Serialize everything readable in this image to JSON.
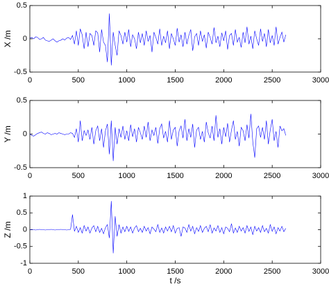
{
  "chart_data": [
    {
      "type": "line",
      "y_label": "X /m",
      "xlim": [
        0,
        3000
      ],
      "xticks": [
        0,
        500,
        1000,
        1500,
        2000,
        2500,
        3000
      ],
      "ylim": [
        -0.5,
        0.5
      ],
      "yticks": [
        -0.5,
        0,
        0.5
      ],
      "x": [
        0,
        20,
        40,
        60,
        80,
        100,
        120,
        140,
        160,
        180,
        200,
        220,
        240,
        260,
        280,
        300,
        320,
        340,
        360,
        380,
        400,
        420,
        440,
        460,
        480,
        500,
        520,
        540,
        560,
        580,
        600,
        620,
        640,
        660,
        680,
        700,
        720,
        740,
        760,
        780,
        800,
        820,
        840,
        860,
        880,
        900,
        920,
        940,
        960,
        980,
        1000,
        1020,
        1040,
        1060,
        1080,
        1100,
        1120,
        1140,
        1160,
        1180,
        1200,
        1220,
        1240,
        1260,
        1280,
        1300,
        1320,
        1340,
        1360,
        1380,
        1400,
        1420,
        1440,
        1460,
        1480,
        1500,
        1520,
        1540,
        1560,
        1580,
        1600,
        1620,
        1640,
        1660,
        1680,
        1700,
        1720,
        1740,
        1760,
        1780,
        1800,
        1820,
        1840,
        1860,
        1880,
        1900,
        1920,
        1940,
        1960,
        1980,
        2000,
        2020,
        2040,
        2060,
        2080,
        2100,
        2120,
        2140,
        2160,
        2180,
        2200,
        2220,
        2240,
        2260,
        2280,
        2300,
        2320,
        2340,
        2360,
        2380,
        2400,
        2420,
        2440,
        2460,
        2480,
        2500,
        2520,
        2540,
        2560,
        2580,
        2600,
        2620,
        2640
      ],
      "series": [
        {
          "color": "#0000ff",
          "values": [
            0.01,
            0.02,
            0.0,
            0.03,
            0.02,
            -0.01,
            0.0,
            0.02,
            -0.02,
            -0.03,
            -0.04,
            -0.02,
            0.0,
            -0.03,
            -0.05,
            -0.03,
            -0.02,
            0.0,
            -0.02,
            0.01,
            0.02,
            -0.01,
            0.05,
            -0.08,
            0.12,
            -0.1,
            0.15,
            0.06,
            -0.15,
            0.1,
            -0.12,
            0.08,
            0.05,
            -0.1,
            0.12,
            0.09,
            -0.2,
            0.14,
            -0.05,
            -0.1,
            -0.35,
            0.38,
            -0.4,
            0.1,
            -0.1,
            -0.25,
            0.12,
            0.05,
            -0.08,
            0.1,
            -0.05,
            0.14,
            -0.12,
            0.06,
            0.0,
            -0.15,
            0.1,
            -0.06,
            0.08,
            -0.1,
            0.12,
            -0.04,
            0.05,
            -0.2,
            0.1,
            0.02,
            -0.08,
            0.15,
            -0.1,
            0.04,
            -0.06,
            0.12,
            -0.15,
            0.08,
            0.0,
            -0.1,
            0.16,
            -0.05,
            0.06,
            -0.12,
            0.1,
            -0.08,
            0.05,
            0.14,
            -0.18,
            0.03,
            0.08,
            -0.1,
            0.12,
            -0.04,
            0.06,
            -0.14,
            0.1,
            0.02,
            -0.08,
            0.17,
            -0.06,
            0.04,
            -0.12,
            0.09,
            -0.03,
            0.12,
            -0.16,
            0.05,
            0.08,
            -0.1,
            0.14,
            -0.05,
            0.02,
            -0.13,
            0.1,
            -0.06,
            0.18,
            -0.08,
            0.04,
            -0.15,
            0.12,
            0.0,
            -0.1,
            0.15,
            -0.04,
            0.08,
            -0.12,
            0.14,
            -0.06,
            0.05,
            -0.1,
            0.18,
            -0.08,
            0.02,
            0.1,
            -0.05,
            0.06
          ]
        }
      ]
    },
    {
      "type": "line",
      "y_label": "Y /m",
      "xlim": [
        0,
        3000
      ],
      "xticks": [
        0,
        500,
        1000,
        1500,
        2000,
        2500,
        3000
      ],
      "ylim": [
        -0.5,
        0.5
      ],
      "yticks": [
        -0.5,
        0,
        0.5
      ],
      "x": [
        0,
        20,
        40,
        60,
        80,
        100,
        120,
        140,
        160,
        180,
        200,
        220,
        240,
        260,
        280,
        300,
        320,
        340,
        360,
        380,
        400,
        420,
        440,
        460,
        480,
        500,
        520,
        540,
        560,
        580,
        600,
        620,
        640,
        660,
        680,
        700,
        720,
        740,
        760,
        780,
        800,
        820,
        840,
        860,
        880,
        900,
        920,
        940,
        960,
        980,
        1000,
        1020,
        1040,
        1060,
        1080,
        1100,
        1120,
        1140,
        1160,
        1180,
        1200,
        1220,
        1240,
        1260,
        1280,
        1300,
        1320,
        1340,
        1360,
        1380,
        1400,
        1420,
        1440,
        1460,
        1480,
        1500,
        1520,
        1540,
        1560,
        1580,
        1600,
        1620,
        1640,
        1660,
        1680,
        1700,
        1720,
        1740,
        1760,
        1780,
        1800,
        1820,
        1840,
        1860,
        1880,
        1900,
        1920,
        1940,
        1960,
        1980,
        2000,
        2020,
        2040,
        2060,
        2080,
        2100,
        2120,
        2140,
        2160,
        2180,
        2200,
        2220,
        2240,
        2260,
        2280,
        2300,
        2320,
        2340,
        2360,
        2380,
        2400,
        2420,
        2440,
        2460,
        2480,
        2500,
        2520,
        2540,
        2560,
        2580,
        2600,
        2620,
        2640
      ],
      "series": [
        {
          "color": "#0000ff",
          "values": [
            0.0,
            -0.02,
            -0.03,
            -0.01,
            0.01,
            0.02,
            0.03,
            0.01,
            0.0,
            0.02,
            0.01,
            -0.01,
            0.0,
            0.01,
            0.0,
            0.02,
            0.01,
            0.0,
            -0.01,
            0.0,
            0.0,
            0.02,
            0.01,
            -0.05,
            0.08,
            -0.12,
            0.2,
            -0.1,
            0.05,
            -0.02,
            0.06,
            -0.08,
            0.1,
            -0.15,
            0.05,
            0.12,
            -0.1,
            0.08,
            -0.2,
            0.05,
            0.15,
            -0.3,
            0.2,
            -0.4,
            0.1,
            -0.15,
            0.08,
            -0.05,
            0.12,
            -0.08,
            0.05,
            -0.1,
            0.14,
            -0.04,
            0.08,
            -0.12,
            0.1,
            0.02,
            -0.08,
            0.12,
            -0.05,
            0.18,
            -0.1,
            0.06,
            -0.02,
            0.1,
            -0.14,
            0.08,
            0.15,
            -0.06,
            0.04,
            -0.12,
            0.2,
            -0.08,
            0.06,
            0.1,
            -0.18,
            0.05,
            0.12,
            -0.06,
            0.22,
            -0.1,
            0.08,
            -0.05,
            0.15,
            -0.2,
            0.06,
            0.1,
            -0.08,
            0.04,
            -0.12,
            0.18,
            0.02,
            -0.06,
            0.12,
            -0.1,
            0.28,
            -0.05,
            0.08,
            -0.15,
            0.1,
            -0.04,
            0.16,
            -0.12,
            0.06,
            0.2,
            -0.08,
            0.04,
            -0.18,
            0.1,
            0.05,
            -0.1,
            0.14,
            -0.06,
            0.3,
            -0.12,
            -0.35,
            0.08,
            0.12,
            -0.05,
            0.1,
            -0.08,
            0.2,
            -0.15,
            0.06,
            0.22,
            -0.1,
            0.04,
            -0.2,
            0.12,
            0.05,
            0.08,
            -0.02
          ]
        }
      ]
    },
    {
      "type": "line",
      "y_label": "Z /m",
      "x_label": "t /s",
      "xlim": [
        0,
        3000
      ],
      "xticks": [
        0,
        500,
        1000,
        1500,
        2000,
        2500,
        3000
      ],
      "ylim": [
        -1,
        1
      ],
      "yticks": [
        -1,
        -0.5,
        0,
        0.5,
        1
      ],
      "x": [
        0,
        20,
        40,
        60,
        80,
        100,
        120,
        140,
        160,
        180,
        200,
        220,
        240,
        260,
        280,
        300,
        320,
        340,
        360,
        380,
        400,
        420,
        440,
        460,
        480,
        500,
        520,
        540,
        560,
        580,
        600,
        620,
        640,
        660,
        680,
        700,
        720,
        740,
        760,
        780,
        800,
        820,
        840,
        860,
        880,
        900,
        920,
        940,
        960,
        980,
        1000,
        1020,
        1040,
        1060,
        1080,
        1100,
        1120,
        1140,
        1160,
        1180,
        1200,
        1220,
        1240,
        1260,
        1280,
        1300,
        1320,
        1340,
        1360,
        1380,
        1400,
        1420,
        1440,
        1460,
        1480,
        1500,
        1520,
        1540,
        1560,
        1580,
        1600,
        1620,
        1640,
        1660,
        1680,
        1700,
        1720,
        1740,
        1760,
        1780,
        1800,
        1820,
        1840,
        1860,
        1880,
        1900,
        1920,
        1940,
        1960,
        1980,
        2000,
        2020,
        2040,
        2060,
        2080,
        2100,
        2120,
        2140,
        2160,
        2180,
        2200,
        2220,
        2240,
        2260,
        2280,
        2300,
        2320,
        2340,
        2360,
        2380,
        2400,
        2420,
        2440,
        2460,
        2480,
        2500,
        2520,
        2540,
        2560,
        2580,
        2600,
        2620,
        2640
      ],
      "series": [
        {
          "color": "#0000ff",
          "values": [
            0.0,
            0.01,
            0.0,
            -0.01,
            0.0,
            0.01,
            0.0,
            0.0,
            -0.01,
            0.0,
            0.0,
            0.01,
            0.0,
            -0.01,
            0.0,
            0.0,
            0.01,
            0.0,
            0.0,
            -0.01,
            0.0,
            0.01,
            0.45,
            -0.05,
            0.1,
            -0.08,
            0.06,
            -0.1,
            0.12,
            -0.04,
            0.08,
            -0.1,
            0.05,
            0.12,
            -0.06,
            0.1,
            -0.08,
            0.04,
            -0.12,
            0.06,
            0.15,
            -0.25,
            0.85,
            -0.7,
            0.4,
            -0.2,
            0.15,
            -0.1,
            0.08,
            -0.06,
            0.1,
            -0.05,
            0.08,
            -0.1,
            0.05,
            0.12,
            -0.06,
            0.04,
            -0.08,
            0.1,
            -0.04,
            0.06,
            -0.12,
            0.08,
            0.02,
            -0.06,
            0.15,
            -0.08,
            0.05,
            -0.1,
            0.08,
            -0.04,
            0.1,
            -0.06,
            0.12,
            -0.1,
            0.04,
            0.06,
            -0.2,
            0.08,
            0.05,
            -0.08,
            0.15,
            -0.04,
            0.1,
            -0.12,
            0.06,
            -0.05,
            0.12,
            -0.08,
            0.04,
            0.1,
            -0.06,
            0.15,
            -0.1,
            0.05,
            -0.04,
            0.12,
            -0.08,
            0.06,
            -0.12,
            0.08,
            0.04,
            -0.06,
            0.18,
            -0.1,
            0.05,
            -0.08,
            0.1,
            -0.04,
            0.06,
            -0.1,
            0.12,
            -0.05,
            0.08,
            -0.15,
            0.1,
            -0.04,
            0.06,
            -0.08,
            0.12,
            -0.06,
            0.04,
            -0.1,
            0.15,
            -0.05,
            0.08,
            -0.12,
            0.06,
            -0.04,
            0.1,
            -0.06,
            0.04
          ]
        }
      ]
    }
  ]
}
